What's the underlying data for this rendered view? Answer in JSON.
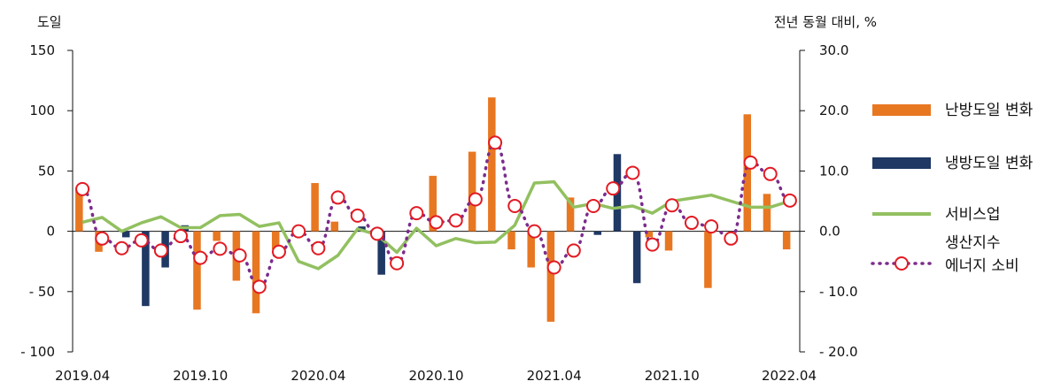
{
  "chart_data": {
    "type": "bar+line",
    "left_axis_label": "도일",
    "right_axis_label": "전년 동월 대비, %",
    "left_ylim": [
      -100,
      150
    ],
    "left_ticks": [
      "150",
      "100",
      "50",
      "0",
      "- 50",
      "- 100"
    ],
    "left_tick_values": [
      150,
      100,
      50,
      0,
      -50,
      -100
    ],
    "right_ylim": [
      -20,
      30
    ],
    "right_ticks": [
      "30.0",
      "20.0",
      "10.0",
      "0.0",
      "- 10.0",
      "- 20.0"
    ],
    "right_tick_values": [
      30,
      20,
      10,
      0,
      -10,
      -20
    ],
    "x_tick_labels": [
      "2019.04",
      "2019.10",
      "2020.04",
      "2020.10",
      "2021.04",
      "2021.10",
      "2022.04"
    ],
    "x_tick_indices": [
      0,
      6,
      12,
      18,
      24,
      30,
      36
    ],
    "categories": [
      "2019.04",
      "2019.05",
      "2019.06",
      "2019.07",
      "2019.08",
      "2019.09",
      "2019.10",
      "2019.11",
      "2019.12",
      "2020.01",
      "2020.02",
      "2020.03",
      "2020.04",
      "2020.05",
      "2020.06",
      "2020.07",
      "2020.08",
      "2020.09",
      "2020.10",
      "2020.11",
      "2020.12",
      "2021.01",
      "2021.02",
      "2021.03",
      "2021.04",
      "2021.05",
      "2021.06",
      "2021.07",
      "2021.08",
      "2021.09",
      "2021.10",
      "2021.11",
      "2021.12",
      "2022.01",
      "2022.02",
      "2022.03",
      "2022.04"
    ],
    "series": [
      {
        "name": "난방도일 변화",
        "type": "bar",
        "axis": "left",
        "color": "#E87722",
        "values": [
          36,
          -17,
          0,
          0,
          0,
          0,
          -65,
          -8,
          -41,
          -68,
          -15,
          0,
          40,
          8,
          0,
          0,
          0,
          0,
          46,
          0,
          66,
          111,
          -15,
          -30,
          -75,
          28,
          0,
          0,
          0,
          -5,
          -16,
          0,
          -47,
          0,
          97,
          31,
          -15
        ]
      },
      {
        "name": "냉방도일 변화",
        "type": "bar",
        "axis": "left",
        "color": "#1F3864",
        "values": [
          0,
          0,
          -5,
          -62,
          -30,
          5,
          0,
          0,
          0,
          0,
          0,
          0,
          0,
          0,
          4,
          -36,
          0,
          0,
          0,
          0,
          0,
          0,
          0,
          0,
          0,
          0,
          -3,
          64,
          -43,
          0,
          0,
          0,
          0,
          0,
          0,
          0,
          0
        ]
      },
      {
        "name": "서비스업",
        "type": "line",
        "axis": "right",
        "color": "#92C060",
        "values": [
          1.5,
          2.3,
          0.0,
          1.4,
          2.4,
          0.6,
          0.6,
          2.6,
          2.8,
          0.8,
          1.4,
          -5.0,
          -6.2,
          -4.0,
          0.4,
          -0.6,
          -3.5,
          0.5,
          -2.4,
          -1.2,
          -1.9,
          -1.8,
          1.0,
          8.0,
          8.2,
          4.0,
          4.6,
          3.8,
          4.2,
          3.0,
          5.0,
          5.5,
          6.0,
          5.0,
          4.0,
          4.0,
          5.0
        ]
      },
      {
        "name": "생산지수\n에너지 소비",
        "type": "line-marker",
        "axis": "right",
        "color": "#7B2C8C",
        "marker_color": "#E21B23",
        "values": [
          7.0,
          -1.2,
          -2.8,
          -1.5,
          -3.2,
          -0.8,
          -4.4,
          -2.9,
          -4.0,
          -9.2,
          -3.4,
          0.0,
          -2.8,
          5.6,
          2.6,
          -0.4,
          -5.3,
          3.0,
          1.5,
          1.8,
          5.3,
          14.7,
          4.2,
          0.0,
          -6.0,
          -3.2,
          4.2,
          7.1,
          9.7,
          -2.2,
          4.3,
          1.4,
          0.8,
          -1.2,
          11.4,
          9.5,
          5.1
        ]
      }
    ],
    "legend_position": "right"
  }
}
